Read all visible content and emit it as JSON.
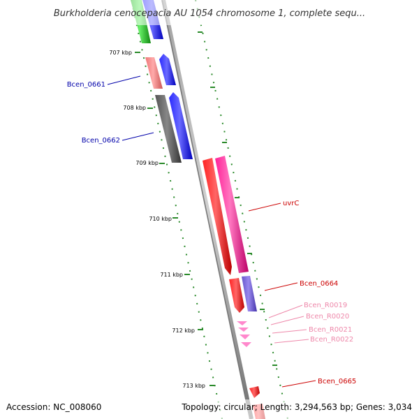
{
  "title": "Burkholderia cenocepacia AU 1054 chromosome 1, complete sequ...",
  "footer": {
    "accession": "Accession: NC_008060",
    "summary": "Topology: circular; Length: 3,294,563 bp; Genes: 3,034"
  },
  "kbp_labels": [
    "707 kbp",
    "708 kbp",
    "709 kbp",
    "710 kbp",
    "711 kbp",
    "712 kbp",
    "713 kbp"
  ],
  "genes": [
    {
      "name": "Bcen_0661",
      "color": "#0000aa"
    },
    {
      "name": "Bcen_0662",
      "color": "#0000aa"
    },
    {
      "name": "uvrC",
      "color": "#cc0000"
    },
    {
      "name": "Bcen_0664",
      "color": "#cc0000"
    },
    {
      "name": "Bcen_R0019",
      "color": "#ee88aa"
    },
    {
      "name": "Bcen_R0020",
      "color": "#ee88aa"
    },
    {
      "name": "Bcen_R0021",
      "color": "#ee88aa"
    },
    {
      "name": "Bcen_R0022",
      "color": "#ee88aa"
    },
    {
      "name": "Bcen_0665",
      "color": "#cc0000"
    }
  ],
  "colors": {
    "backbone": "#808080",
    "tick": "#2a8a2a",
    "cds_blue": "#0000ee",
    "cds_red": "#ee0000",
    "cds_magenta": "#ee1188",
    "cds_grey": "#555555",
    "cds_green": "#22bb22",
    "cds_pink": "#ee7777",
    "cds_purple": "#6655cc",
    "rna_pink": "#ff88cc"
  }
}
